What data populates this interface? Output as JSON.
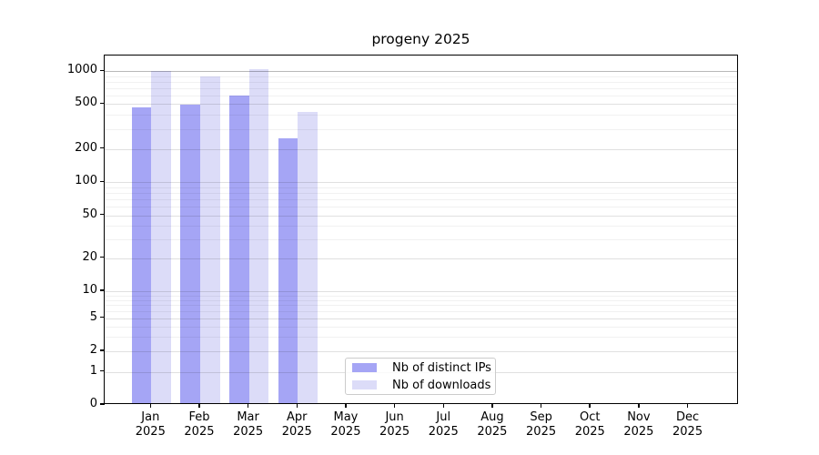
{
  "chart_data": {
    "type": "bar",
    "title": "progeny 2025",
    "categories": [
      "Jan",
      "Feb",
      "Mar",
      "Apr",
      "May",
      "Jun",
      "Jul",
      "Aug",
      "Sep",
      "Oct",
      "Nov",
      "Dec"
    ],
    "year": "2025",
    "series": [
      {
        "name": "Nb of distinct IPs",
        "color": "#a5a5f5",
        "values": [
          450,
          480,
          580,
          240,
          null,
          null,
          null,
          null,
          null,
          null,
          null,
          null
        ]
      },
      {
        "name": "Nb of downloads",
        "color": "#dcdcf8",
        "values": [
          970,
          870,
          1000,
          410,
          null,
          null,
          null,
          null,
          null,
          null,
          null,
          null
        ]
      }
    ],
    "xlabel": "",
    "ylabel": "",
    "yscale": "symlog",
    "yticks": [
      0,
      1,
      2,
      5,
      10,
      20,
      50,
      100,
      200,
      500,
      1000
    ],
    "ylim": [
      0,
      1100
    ],
    "grid": true,
    "legend_position": "lower center"
  },
  "colors": {
    "background": "#ffffff",
    "axis": "#000000",
    "grid_major": "rgba(0,0,0,0.12)",
    "grid_minor": "rgba(0,0,0,0.055)",
    "grid_top": "rgba(0,0,0,0.28)",
    "legend_border": "#cccccc"
  }
}
